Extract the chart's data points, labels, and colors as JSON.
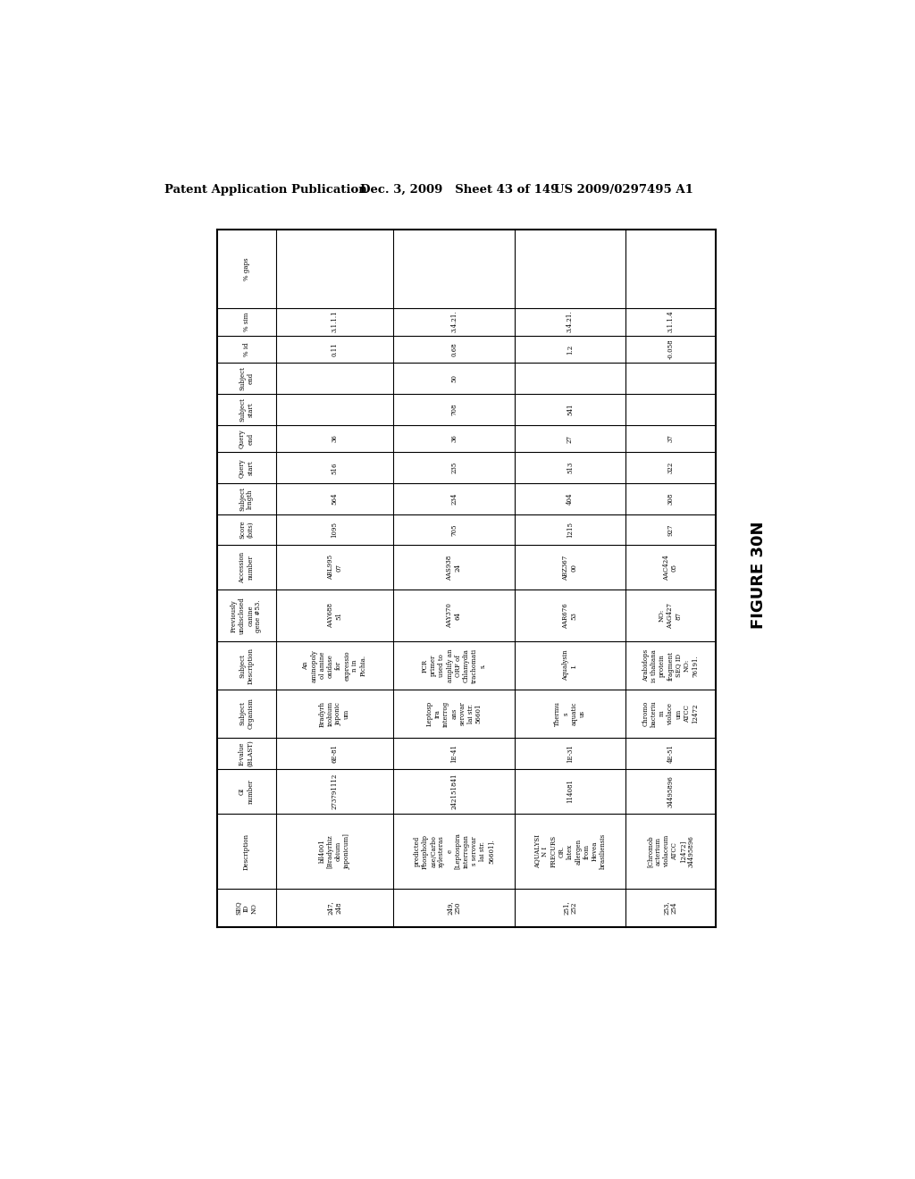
{
  "header_left": "Patent Application Publication",
  "header_mid": "Dec. 3, 2009   Sheet 43 of 149",
  "header_right": "US 2009/0297495 A1",
  "figure_label": "FIGURE 30N",
  "bg_color": "#ffffff",
  "table_rows": [
    {
      "seq": "247,\n248",
      "desc": "bll4001\n[Bradyrhiz\nobium\njaponicum]",
      "gi": "273791112",
      "eval": "6E-81",
      "org": "Bradyrh\nizobium\njaponic\num",
      "sdesc": "An\naminopoly\nol amine\noxidase\nfor\nexpressio\nn in\nPichia.",
      "prev": "AAY688\n51",
      "acc": "ABL995\n07",
      "score": "1095",
      "slen": "564",
      "qstart": "516",
      "qend": "36",
      "sstart": "",
      "send": "",
      "pid": "0.11",
      "psim": "3.1.1.1",
      "pgap": ""
    },
    {
      "seq": "249,\n250",
      "desc": "predicted\nPhospholip\nase/Carbo\nxylesteras\ne\n[Leptospira\ninterrogan\ns serovar\nlai str.\n56601].",
      "gi": "242151841",
      "eval": "1E-41",
      "org": "Leptosp\nira\ninterrog\nans\nserovar\nlai str.\n56601",
      "sdesc": "PCR\nprimer\nused to\namplify an\nORF of\nChlamydia\ntrachomati\ns.",
      "prev": "AAY370\n64",
      "acc": "AAS938\n24",
      "score": "705",
      "slen": "234",
      "qstart": "235",
      "qend": "36",
      "sstart": "708",
      "send": "50",
      "pid": "0.68",
      "psim": "3.4.21.",
      "pgap": ""
    },
    {
      "seq": "251,\n252",
      "desc": "AQUALYSI\nN I\nPRECURS\nOR.\nlatex\nallergen\nfrom\nHevea\nbrasiliensis",
      "gi": "114081",
      "eval": "1E-31",
      "org": "Thermu\ns\naquatic\nus",
      "sdesc": "Aqualysin\nI.",
      "prev": "AAR676\n53",
      "acc": "ABZ367\n00",
      "score": "1215",
      "slen": "404",
      "qstart": "513",
      "qend": "27",
      "sstart": "541",
      "send": "",
      "pid": "1.2",
      "psim": "3.4.21.",
      "pgap": ""
    },
    {
      "seq": "253,\n254",
      "desc": "[Chromob\nacterium\nviolaceum\nATCC\n12472]\n34495896",
      "gi": "34495896",
      "eval": "4E-51",
      "org": "Chromo\nbacteriu\nm\nviolace\num\nATCC\n12472",
      "sdesc": "Arabidops\nis thaliana\nprotein\nfragment\nSEQ ID\nNO:\n76191.",
      "prev": "NO:\nAAG427\n87",
      "acc": "AAC424\n05",
      "score": "927",
      "slen": "308",
      "qstart": "322",
      "qend": "37",
      "sstart": "",
      "send": "",
      "pid": "-0.058",
      "psim": "3.1.1.4",
      "pgap": ""
    }
  ],
  "col_headers": [
    "SEQ\nID\nNO",
    "Description",
    "GI\nnumber",
    "E-value\n(BLAST)",
    "Subject\nOrganism",
    "Subject\nDescription",
    "Previously\nundisclosed\ncanine\ngene #53.",
    "Accession\nnumber",
    "Score\n(bits)",
    "Subject\nlength",
    "Query\nstart",
    "Query\nend",
    "Subject\nstart",
    "Subject\nend",
    "% id",
    "% sim",
    "% gaps"
  ]
}
